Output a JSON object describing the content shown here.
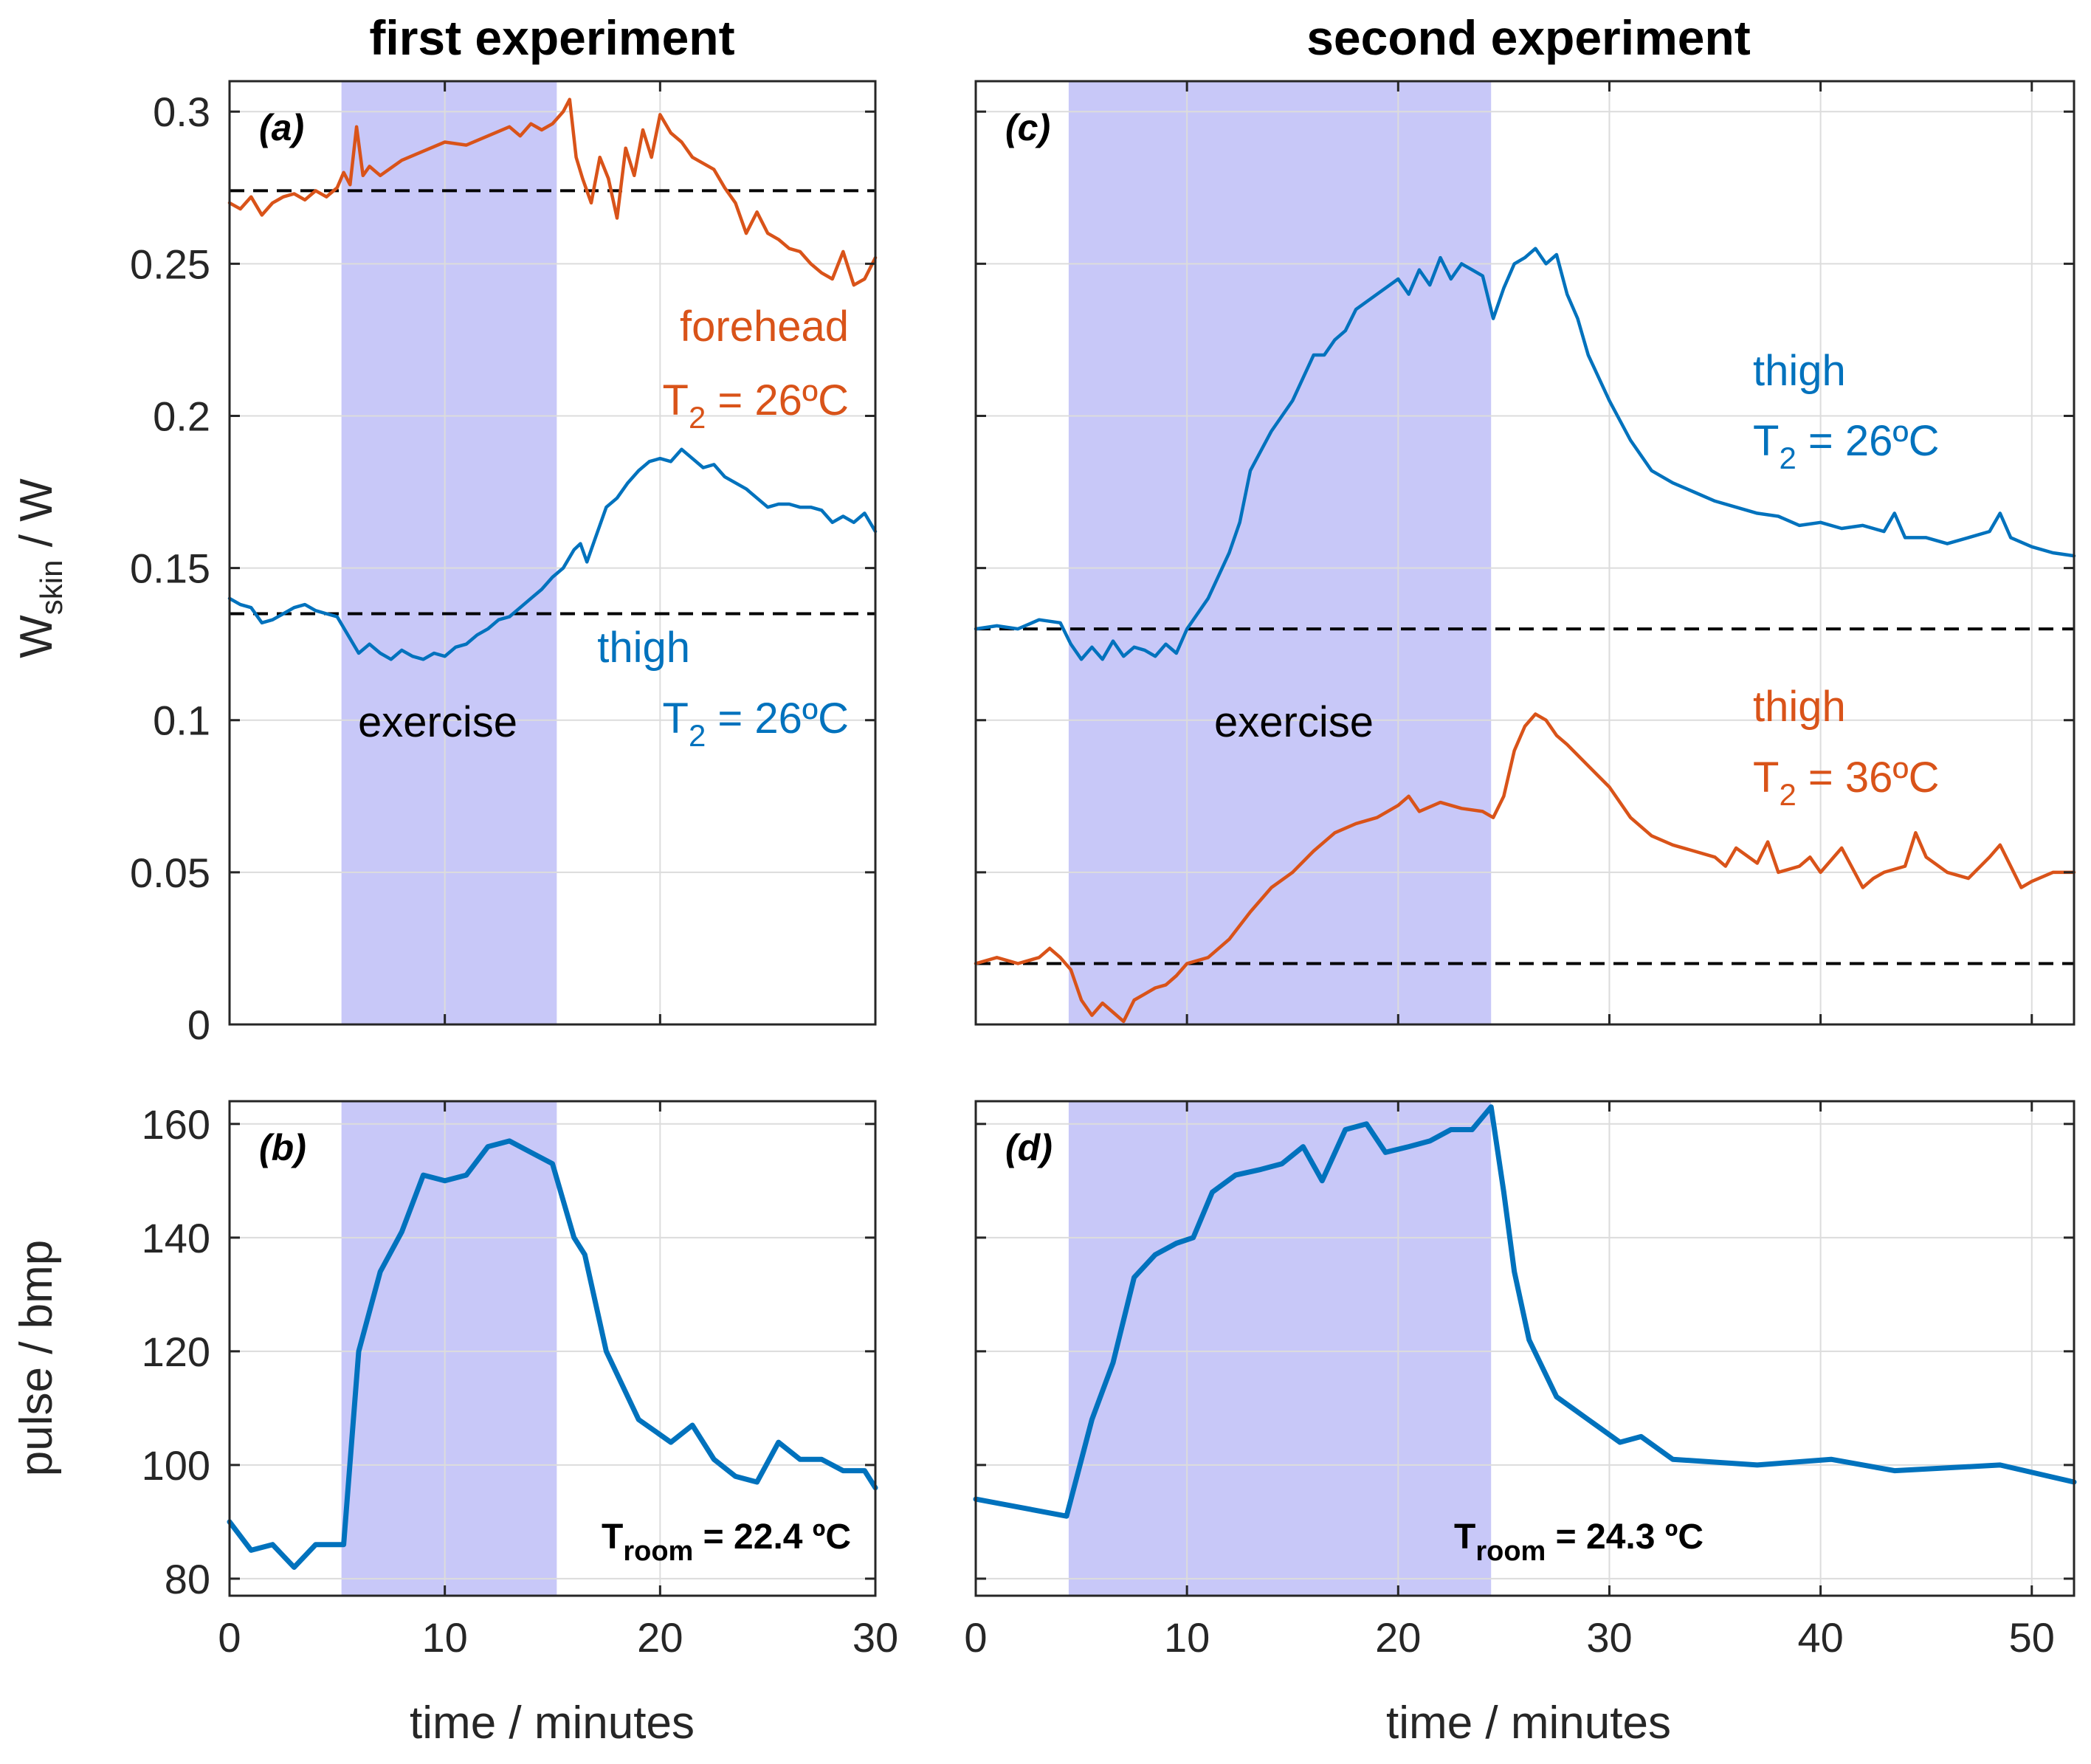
{
  "figure": {
    "titles": {
      "left": "first experiment",
      "right": "second experiment"
    },
    "ylabel_top": {
      "base": "W",
      "sub": "skin",
      "rest": " / W"
    },
    "ylabel_bottom": "pulse / bmp",
    "xlabel": "time / minutes",
    "colors": {
      "orange": "#d95319",
      "blue": "#0072bd",
      "shade": "#c8c8f8"
    }
  },
  "annotations": {
    "a": {
      "forehead": {
        "name": "forehead",
        "temp_prefix": "T",
        "temp_sub": "2",
        "temp_value": " = 26ºC"
      },
      "thigh": {
        "name": "thigh",
        "temp_prefix": "T",
        "temp_sub": "2",
        "temp_value": " = 26ºC"
      },
      "exercise": "exercise"
    },
    "c": {
      "thigh_blue": {
        "name": "thigh",
        "temp_prefix": "T",
        "temp_sub": "2",
        "temp_value": " = 26ºC"
      },
      "thigh_orange": {
        "name": "thigh",
        "temp_prefix": "T",
        "temp_sub": "2",
        "temp_value": " = 36ºC"
      },
      "exercise": "exercise"
    },
    "b": {
      "room_prefix": "T",
      "room_sub": "room",
      "room_value": " = 22.4 ºC"
    },
    "d": {
      "room_prefix": "T",
      "room_sub": "room",
      "room_value": " = 24.3 ºC"
    }
  },
  "chart_data": [
    {
      "id": "a",
      "type": "line",
      "panel_label": "(a)",
      "xlim": [
        0,
        30
      ],
      "ylim": [
        0,
        0.31
      ],
      "yticks": [
        0,
        0.05,
        0.1,
        0.15,
        0.2,
        0.25,
        0.3
      ],
      "ytick_labels": [
        "0",
        "0.05",
        "0.1",
        "0.15",
        "0.2",
        "0.25",
        "0.3"
      ],
      "xticks": [
        0,
        10,
        20,
        30
      ],
      "exercise_interval": [
        5.2,
        15.2
      ],
      "baselines": [
        0.274,
        0.135
      ],
      "series": [
        {
          "name": "forehead T2 = 26ºC",
          "color": "#d95319",
          "x": [
            0,
            0.5,
            1,
            1.5,
            2,
            2.5,
            3,
            3.5,
            4,
            4.5,
            5,
            5.3,
            5.6,
            5.9,
            6.2,
            6.5,
            7,
            8,
            9,
            10,
            11,
            12,
            13,
            13.5,
            14,
            14.5,
            15,
            15.5,
            15.8,
            16.1,
            16.4,
            16.8,
            17.2,
            17.6,
            18,
            18.4,
            18.8,
            19.2,
            19.6,
            20,
            20.5,
            21,
            21.5,
            22,
            22.5,
            23,
            23.5,
            24,
            24.5,
            25,
            25.5,
            26,
            26.5,
            27,
            27.5,
            28,
            28.5,
            29,
            29.5,
            30
          ],
          "y": [
            0.27,
            0.268,
            0.272,
            0.266,
            0.27,
            0.272,
            0.273,
            0.271,
            0.274,
            0.272,
            0.275,
            0.28,
            0.276,
            0.295,
            0.279,
            0.282,
            0.279,
            0.284,
            0.287,
            0.29,
            0.289,
            0.292,
            0.295,
            0.292,
            0.296,
            0.294,
            0.296,
            0.3,
            0.304,
            0.285,
            0.278,
            0.27,
            0.285,
            0.278,
            0.265,
            0.288,
            0.279,
            0.294,
            0.285,
            0.299,
            0.293,
            0.29,
            0.285,
            0.283,
            0.281,
            0.275,
            0.27,
            0.26,
            0.267,
            0.26,
            0.258,
            0.255,
            0.254,
            0.25,
            0.247,
            0.245,
            0.254,
            0.243,
            0.245,
            0.252
          ]
        },
        {
          "name": "thigh T2 = 26ºC",
          "color": "#0072bd",
          "x": [
            0,
            0.5,
            1,
            1.5,
            2,
            2.5,
            3,
            3.5,
            4,
            4.5,
            5,
            5.5,
            6,
            6.5,
            7,
            7.5,
            8,
            8.5,
            9,
            9.5,
            10,
            10.5,
            11,
            11.5,
            12,
            12.5,
            13,
            13.5,
            14,
            14.5,
            15,
            15.5,
            16,
            16.3,
            16.6,
            17,
            17.5,
            18,
            18.5,
            19,
            19.5,
            20,
            20.5,
            21,
            21.5,
            22,
            22.5,
            23,
            23.5,
            24,
            24.5,
            25,
            25.5,
            26,
            26.5,
            27,
            27.5,
            28,
            28.5,
            29,
            29.5,
            30
          ],
          "y": [
            0.14,
            0.138,
            0.137,
            0.132,
            0.133,
            0.135,
            0.137,
            0.138,
            0.136,
            0.135,
            0.134,
            0.128,
            0.122,
            0.125,
            0.122,
            0.12,
            0.123,
            0.121,
            0.12,
            0.122,
            0.121,
            0.124,
            0.125,
            0.128,
            0.13,
            0.133,
            0.134,
            0.137,
            0.14,
            0.143,
            0.147,
            0.15,
            0.156,
            0.158,
            0.152,
            0.16,
            0.17,
            0.173,
            0.178,
            0.182,
            0.185,
            0.186,
            0.185,
            0.189,
            0.186,
            0.183,
            0.184,
            0.18,
            0.178,
            0.176,
            0.173,
            0.17,
            0.171,
            0.171,
            0.17,
            0.17,
            0.169,
            0.165,
            0.167,
            0.165,
            0.168,
            0.162
          ]
        }
      ]
    },
    {
      "id": "b",
      "type": "line",
      "panel_label": "(b)",
      "xlim": [
        0,
        30
      ],
      "ylim": [
        77,
        164
      ],
      "yticks": [
        80,
        100,
        120,
        140,
        160
      ],
      "ytick_labels": [
        "80",
        "100",
        "120",
        "140",
        "160"
      ],
      "xticks": [
        0,
        10,
        20,
        30
      ],
      "xtick_labels": [
        "0",
        "10",
        "20",
        "30"
      ],
      "exercise_interval": [
        5.2,
        15.2
      ],
      "series": [
        {
          "name": "pulse",
          "color": "#0072bd",
          "x": [
            0,
            1,
            2,
            3,
            4,
            5,
            5.3,
            6,
            7,
            8,
            9,
            10,
            11,
            12,
            13,
            14,
            15,
            16,
            16.5,
            17.5,
            19,
            20.5,
            21.5,
            22.5,
            23.5,
            24.5,
            25.5,
            26.5,
            27.5,
            28.5,
            29.5,
            30
          ],
          "y": [
            90,
            85,
            86,
            82,
            86,
            86,
            86,
            120,
            134,
            141,
            151,
            150,
            151,
            156,
            157,
            155,
            153,
            140,
            137,
            120,
            108,
            104,
            107,
            101,
            98,
            97,
            104,
            101,
            101,
            99,
            99,
            96
          ]
        }
      ]
    },
    {
      "id": "c",
      "type": "line",
      "panel_label": "(c)",
      "xlim": [
        0,
        52
      ],
      "ylim": [
        0,
        0.31
      ],
      "yticks": [
        0,
        0.05,
        0.1,
        0.15,
        0.2,
        0.25,
        0.3
      ],
      "xticks": [
        0,
        10,
        20,
        30,
        40,
        50
      ],
      "exercise_interval": [
        4.4,
        24.4
      ],
      "baselines": [
        0.13,
        0.02
      ],
      "series": [
        {
          "name": "thigh T2 = 26ºC",
          "color": "#0072bd",
          "x": [
            0,
            1,
            2,
            3,
            4,
            4.5,
            5,
            5.5,
            6,
            6.5,
            7,
            7.5,
            8,
            8.5,
            9,
            9.5,
            10,
            11,
            12,
            12.5,
            13,
            14,
            15,
            16,
            16.5,
            17,
            17.5,
            18,
            19,
            20,
            20.5,
            21,
            21.5,
            22,
            22.5,
            23,
            23.5,
            24,
            24.5,
            25,
            25.5,
            26,
            26.5,
            27,
            27.5,
            28,
            28.5,
            29,
            30,
            31,
            32,
            33,
            34,
            35,
            36,
            37,
            38,
            39,
            40,
            41,
            42,
            43,
            43.5,
            44,
            45,
            46,
            47,
            48,
            48.5,
            49,
            50,
            51,
            52
          ],
          "y": [
            0.13,
            0.131,
            0.13,
            0.133,
            0.132,
            0.125,
            0.12,
            0.124,
            0.12,
            0.126,
            0.121,
            0.124,
            0.123,
            0.121,
            0.125,
            0.122,
            0.13,
            0.14,
            0.155,
            0.165,
            0.182,
            0.195,
            0.205,
            0.22,
            0.22,
            0.225,
            0.228,
            0.235,
            0.24,
            0.245,
            0.24,
            0.248,
            0.243,
            0.252,
            0.245,
            0.25,
            0.248,
            0.246,
            0.232,
            0.242,
            0.25,
            0.252,
            0.255,
            0.25,
            0.253,
            0.24,
            0.232,
            0.22,
            0.205,
            0.192,
            0.182,
            0.178,
            0.175,
            0.172,
            0.17,
            0.168,
            0.167,
            0.164,
            0.165,
            0.163,
            0.164,
            0.162,
            0.168,
            0.16,
            0.16,
            0.158,
            0.16,
            0.162,
            0.168,
            0.16,
            0.157,
            0.155,
            0.154
          ]
        },
        {
          "name": "thigh T2 = 36ºC",
          "color": "#d95319",
          "x": [
            0,
            1,
            2,
            3,
            3.5,
            4,
            4.5,
            5,
            5.5,
            6,
            6.5,
            7,
            7.5,
            8,
            8.5,
            9,
            9.5,
            10,
            11,
            12,
            13,
            14,
            15,
            16,
            17,
            18,
            19,
            20,
            20.5,
            21,
            22,
            23,
            24,
            24.5,
            25,
            25.5,
            26,
            26.5,
            27,
            27.5,
            28,
            29,
            30,
            31,
            32,
            33,
            34,
            35,
            35.5,
            36,
            37,
            37.5,
            38,
            39,
            39.5,
            40,
            41,
            42,
            42.5,
            43,
            44,
            44.5,
            45,
            46,
            47,
            48,
            48.5,
            49,
            49.5,
            50,
            51,
            52
          ],
          "y": [
            0.02,
            0.022,
            0.02,
            0.022,
            0.025,
            0.022,
            0.018,
            0.008,
            0.003,
            0.007,
            0.004,
            0.001,
            0.008,
            0.01,
            0.012,
            0.013,
            0.016,
            0.02,
            0.022,
            0.028,
            0.037,
            0.045,
            0.05,
            0.057,
            0.063,
            0.066,
            0.068,
            0.072,
            0.075,
            0.07,
            0.073,
            0.071,
            0.07,
            0.068,
            0.075,
            0.09,
            0.098,
            0.102,
            0.1,
            0.095,
            0.092,
            0.085,
            0.078,
            0.068,
            0.062,
            0.059,
            0.057,
            0.055,
            0.052,
            0.058,
            0.053,
            0.06,
            0.05,
            0.052,
            0.055,
            0.05,
            0.058,
            0.045,
            0.048,
            0.05,
            0.052,
            0.063,
            0.055,
            0.05,
            0.048,
            0.055,
            0.059,
            0.052,
            0.045,
            0.047,
            0.05,
            0.05
          ]
        }
      ]
    },
    {
      "id": "d",
      "type": "line",
      "panel_label": "(d)",
      "xlim": [
        0,
        52
      ],
      "ylim": [
        77,
        164
      ],
      "yticks": [
        80,
        100,
        120,
        140,
        160
      ],
      "xticks": [
        0,
        10,
        20,
        30,
        40,
        50
      ],
      "xtick_labels": [
        "0",
        "10",
        "20",
        "30",
        "40",
        "50"
      ],
      "exercise_interval": [
        4.4,
        24.4
      ],
      "series": [
        {
          "name": "pulse",
          "color": "#0072bd",
          "x": [
            0,
            4.3,
            5.5,
            6.5,
            7.5,
            8.5,
            9.5,
            10.3,
            11.2,
            12.3,
            13.5,
            14.5,
            15.5,
            16.4,
            17.5,
            18.5,
            19.4,
            20.5,
            21.5,
            22.5,
            23.5,
            24.4,
            25,
            25.5,
            26.2,
            27.5,
            29,
            30.5,
            31.5,
            33,
            37,
            40.5,
            43.5,
            48.5,
            52
          ],
          "y": [
            94,
            91,
            108,
            118,
            133,
            137,
            139,
            140,
            148,
            151,
            152,
            153,
            156,
            150,
            159,
            160,
            155,
            156,
            157,
            159,
            159,
            163,
            148,
            134,
            122,
            112,
            108,
            104,
            105,
            101,
            100,
            101,
            99,
            100,
            97
          ]
        }
      ]
    }
  ]
}
